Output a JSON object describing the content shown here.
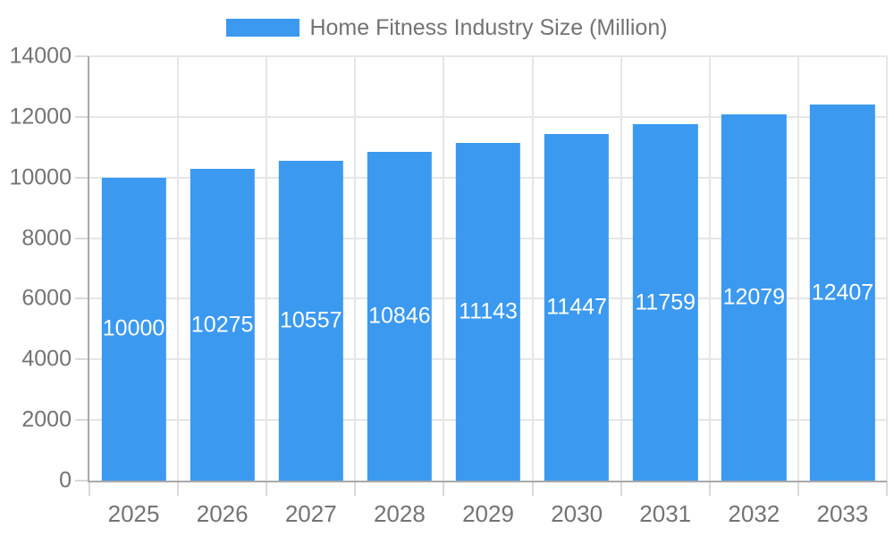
{
  "chart_data": {
    "type": "bar",
    "title": "Home Fitness Industry Size (Million)",
    "legend": {
      "label": "Home Fitness Industry Size (Million)",
      "position": "top"
    },
    "categories": [
      "2025",
      "2026",
      "2027",
      "2028",
      "2029",
      "2030",
      "2031",
      "2032",
      "2033"
    ],
    "series": [
      {
        "name": "Home Fitness Industry Size (Million)",
        "values": [
          10000,
          10275,
          10557,
          10846,
          11143,
          11447,
          11759,
          12079,
          12407
        ]
      }
    ],
    "xlabel": "",
    "ylabel": "",
    "ylim": [
      0,
      14000
    ],
    "yticks": [
      0,
      2000,
      4000,
      6000,
      8000,
      10000,
      12000,
      14000
    ],
    "grid": true,
    "legend_position": "top",
    "value_labels_position": "inside-center",
    "bar_width_fraction": 0.73,
    "colors": {
      "bar": "#3b99f0",
      "value_label_text": "#ffffff",
      "axis_text": "#737373",
      "legend_text": "#737373",
      "gridline": "#e6e6e6",
      "axis_line": "#a8a8a8",
      "tick": "#d9d9d9",
      "background": "#ffffff"
    }
  }
}
